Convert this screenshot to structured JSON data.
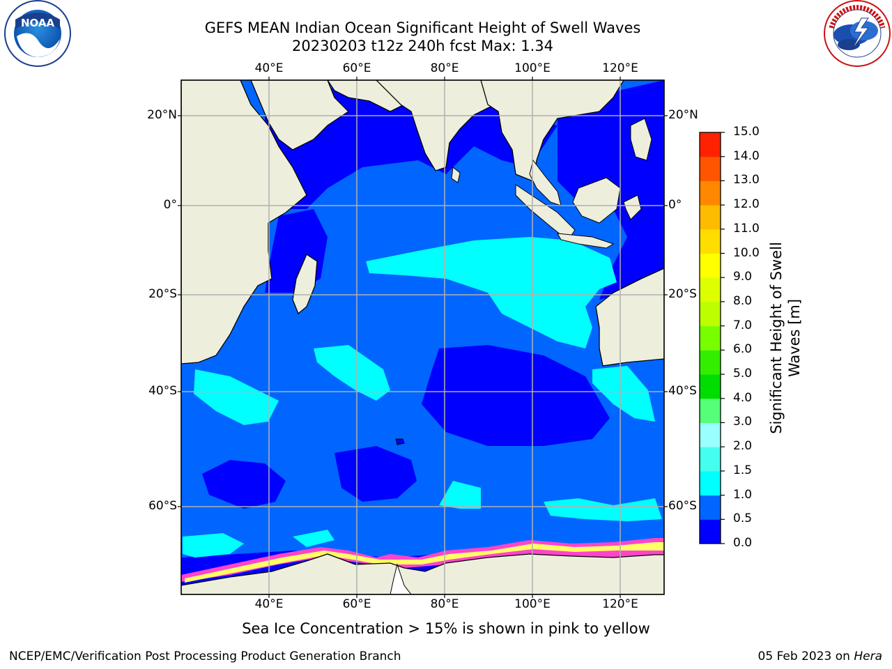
{
  "header": {
    "title_line1": "GEFS MEAN Indian Ocean Significant Height of Swell Waves",
    "title_line2": "20230203 t12z 240h fcst   Max: 1.34"
  },
  "logos": {
    "left": {
      "name": "NOAA",
      "text": "NOAA",
      "ring_text": "NATIONAL OCEANIC AND ATMOSPHERIC ADMINISTRATION · U.S. DEPARTMENT OF COMMERCE"
    },
    "right": {
      "name": "National Weather Service",
      "ring_text": "NATIONAL WEATHER SERVICE"
    }
  },
  "map": {
    "lon_ticks": [
      "40°E",
      "60°E",
      "80°E",
      "100°E",
      "120°E"
    ],
    "lat_ticks": [
      "20°N",
      "0°",
      "20°S",
      "40°S",
      "60°S"
    ],
    "lon_values": [
      40,
      60,
      80,
      100,
      120
    ],
    "lat_values": [
      20,
      0,
      -20,
      -40,
      -60
    ],
    "extent": {
      "lon_min": 20,
      "lon_max": 130,
      "lat_min": -78,
      "lat_max": 28
    },
    "grid": true,
    "colors": {
      "ocean_low": "#0000ff",
      "ocean_mid": "#0066ff",
      "ocean_high": "#00ffff",
      "land": "#eeeedd",
      "ice_pink": "#ff44cc",
      "ice_yellow": "#ffff66",
      "grid": "#b0b0b0"
    }
  },
  "colorbar": {
    "title_line1": "Significant Height of Swell",
    "title_line2": "Waves [m]",
    "labels": [
      "0.0",
      "0.5",
      "1.0",
      "1.5",
      "2.0",
      "3.0",
      "4.0",
      "5.0",
      "6.0",
      "7.0",
      "8.0",
      "9.0",
      "10.0",
      "11.0",
      "12.0",
      "13.0",
      "14.0",
      "15.0"
    ],
    "colors": [
      "#0000ff",
      "#0066ff",
      "#00ffff",
      "#44ffee",
      "#99ffff",
      "#55ff77",
      "#00dd00",
      "#33ee00",
      "#77ff00",
      "#bbff00",
      "#ddff00",
      "#ffff00",
      "#ffdd00",
      "#ffbb00",
      "#ff8800",
      "#ff5500",
      "#ff2200"
    ]
  },
  "footnote": "Sea Ice Concentration > 15% is shown in pink to yellow",
  "footer": {
    "left": "NCEP/EMC/Verification Post Processing Product Generation Branch",
    "right_date": "05 Feb 2023 on ",
    "right_machine": "Hera"
  }
}
